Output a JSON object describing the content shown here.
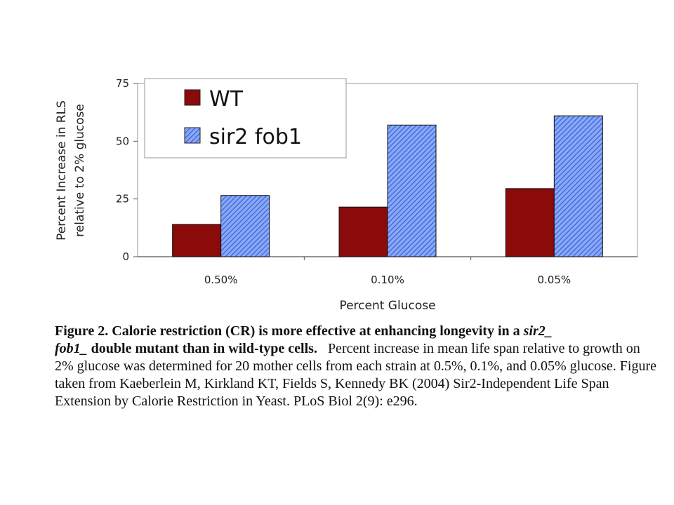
{
  "chart_data": {
    "type": "bar",
    "categories": [
      "0.50%",
      "0.10%",
      "0.05%"
    ],
    "series": [
      {
        "name": "WT",
        "values": [
          14,
          21.5,
          29.5
        ],
        "color": "#8b0a0a",
        "pattern": "solid"
      },
      {
        "name": "sir2 fob1",
        "values": [
          26.5,
          57,
          61
        ],
        "color": "#5f86ee",
        "pattern": "diagonal-hatch"
      }
    ],
    "title": "",
    "xlabel": "Percent Glucose",
    "ylabel_lines": [
      "Percent Increase  in RLS",
      "relative to 2% glucose"
    ],
    "ylim": [
      0,
      75
    ],
    "yticks": [
      "0",
      "25",
      "50",
      "75"
    ],
    "grid": false,
    "legend_position": "top-left"
  },
  "caption": {
    "bold_lead": "Figure 2. Calorie restriction (CR) is more effective at enhancing longevity in a ",
    "italic_1": "sir2_",
    "italic_2": "fob1_",
    "bold_tail": " double mutant than in wild-type cells.",
    "body": "Percent increase in mean life span relative to growth on 2% glucose was determined for 20 mother cells from each strain at 0.5%, 0.1%, and 0.05% glucose.  Figure taken from Kaeberlein M, Kirkland KT, Fields S, Kennedy BK (2004) Sir2-Independent Life Span Extension by Calorie Restriction in Yeast. PLoS Biol 2(9): e296."
  }
}
